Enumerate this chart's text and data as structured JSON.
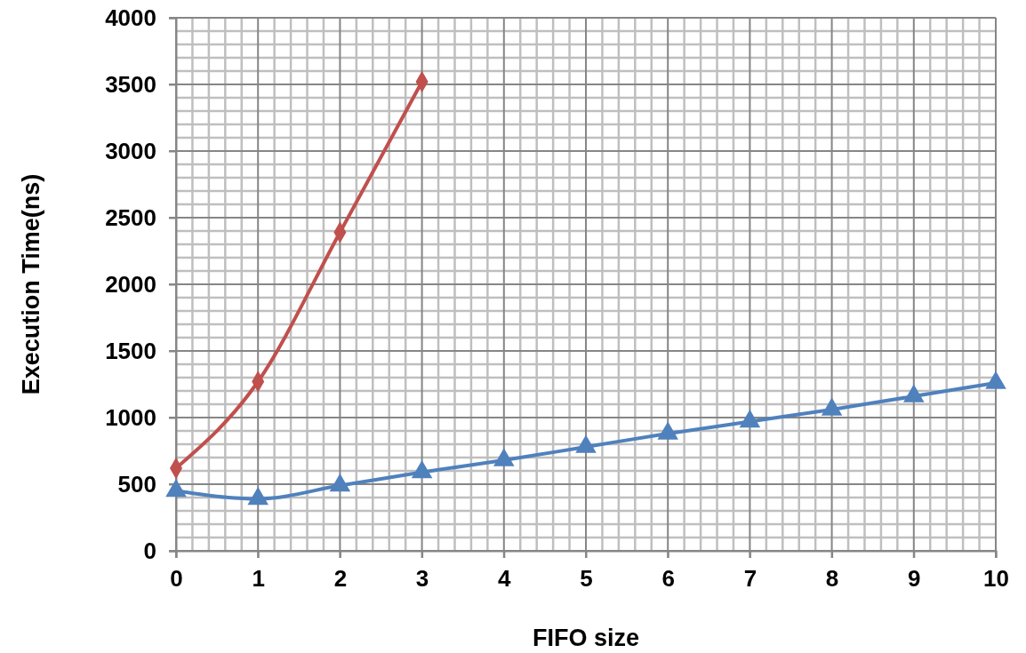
{
  "chart_data": {
    "type": "line",
    "xlabel": "FIFO size",
    "ylabel": "Execution Time(ns)",
    "x": [
      0,
      1,
      2,
      3,
      4,
      5,
      6,
      7,
      8,
      9,
      10
    ],
    "series": [
      {
        "color": "#c0504d",
        "marker": "diamond",
        "x": [
          0,
          1,
          2,
          3
        ],
        "values": [
          620,
          1270,
          2390,
          3520
        ]
      },
      {
        "color": "#4f81bd",
        "marker": "triangle",
        "values": [
          450,
          390,
          490,
          590,
          680,
          780,
          880,
          970,
          1060,
          1160,
          1260
        ]
      }
    ],
    "xlim": [
      0,
      10
    ],
    "xticks": [
      0,
      1,
      2,
      3,
      4,
      5,
      6,
      7,
      8,
      9,
      10
    ],
    "ylim": [
      0,
      4000
    ],
    "yticks": [
      0,
      500,
      1000,
      1500,
      2000,
      2500,
      3000,
      3500,
      4000
    ],
    "grid": true,
    "line_style": "solid"
  }
}
